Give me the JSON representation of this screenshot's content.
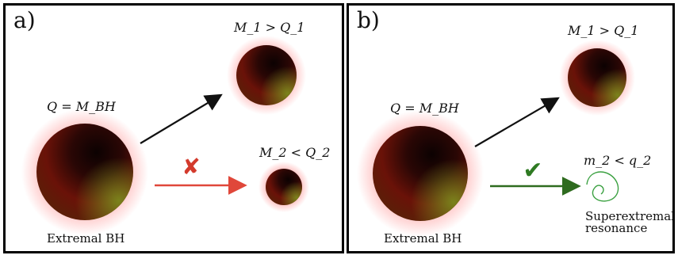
{
  "panel_a": {
    "label": "a)",
    "parent_label": "Q = M_BH",
    "top_label": "M_1 > Q_1",
    "bottom_label": "M_2 < Q_2",
    "caption": "Extremal BH",
    "forbidden_mark": "✘",
    "colors": {
      "forbidden_arrow": "#e0473a",
      "allowed_arrow": "#111111"
    }
  },
  "panel_b": {
    "label": "b)",
    "parent_label": "Q = M_BH",
    "top_label": "M_1 > Q_1",
    "bottom_label": "m_2 < q_2",
    "caption": "Extremal BH",
    "resonance_caption": [
      "Superextremal",
      "resonance"
    ],
    "allowed_mark": "✔",
    "colors": {
      "allowed_arrow": "#2e6b1f",
      "resonance_curve": "#3aa040"
    }
  },
  "colors": {
    "sphere_glow": "#ff6a6a",
    "sphere_body": "#6a1208",
    "sphere_highlight": "#7c8f1e"
  }
}
